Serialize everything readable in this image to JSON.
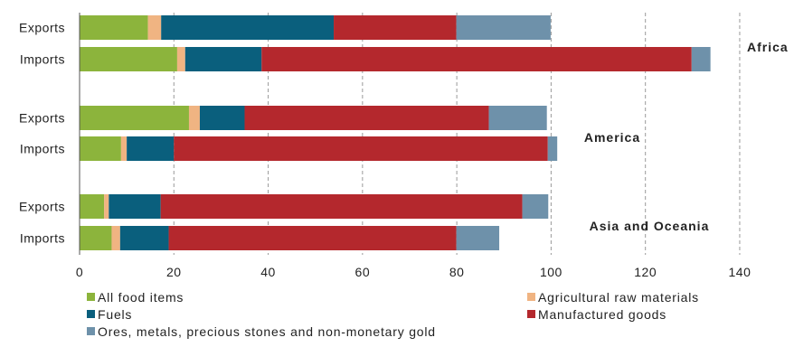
{
  "chart_data": {
    "type": "bar",
    "orientation": "horizontal",
    "stacked": true,
    "xlim": [
      0,
      140
    ],
    "x_ticks": [
      "0",
      "20",
      "40",
      "60",
      "80",
      "100",
      "120",
      "140"
    ],
    "grid": "vertical dashed",
    "legend_position": "bottom",
    "series": [
      {
        "name": "All food items",
        "color": "#8cb43c"
      },
      {
        "name": "Agricultural raw materials",
        "color": "#f0b482"
      },
      {
        "name": "Fuels",
        "color": "#0a5f7d"
      },
      {
        "name": "Manufactured goods",
        "color": "#b4282d"
      },
      {
        "name": "Ores, metals, precious stones and non-monetary gold",
        "color": "#6e91aa"
      }
    ],
    "groups": [
      {
        "region": "Africa",
        "bars": [
          {
            "label": "Exports",
            "values": [
              14.5,
              2.8,
              36.6,
              26.0,
              20.0
            ]
          },
          {
            "label": "Imports",
            "values": [
              20.7,
              1.7,
              16.2,
              91.2,
              4.0
            ]
          }
        ]
      },
      {
        "region": "America",
        "bars": [
          {
            "label": "Exports",
            "values": [
              23.2,
              2.3,
              9.5,
              51.8,
              12.3
            ]
          },
          {
            "label": "Imports",
            "values": [
              8.8,
              1.2,
              10.0,
              79.3,
              2.0
            ]
          }
        ]
      },
      {
        "region": "Asia and Oceania",
        "bars": [
          {
            "label": "Exports",
            "values": [
              5.2,
              1.0,
              11.0,
              76.7,
              5.5
            ]
          },
          {
            "label": "Imports",
            "values": [
              6.8,
              1.8,
              10.3,
              61.0,
              9.1
            ]
          }
        ]
      }
    ]
  }
}
